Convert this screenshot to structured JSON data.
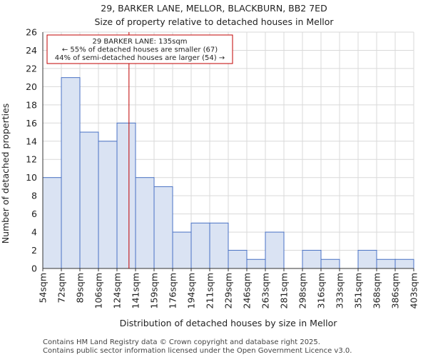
{
  "header": {
    "title_line1": "29, BARKER LANE, MELLOR, BLACKBURN, BB2 7ED",
    "title_line2": "Size of property relative to detached houses in Mellor"
  },
  "footer": {
    "line1": "Contains HM Land Registry data © Crown copyright and database right 2025.",
    "line2": "Contains public sector information licensed under the Open Government Licence v3.0."
  },
  "chart_data": {
    "type": "bar",
    "title": "29, BARKER LANE, MELLOR, BLACKBURN, BB2 7ED",
    "subtitle": "Size of property relative to detached houses in Mellor",
    "xlabel": "Distribution of detached houses by size in Mellor",
    "ylabel": "Number of detached properties",
    "x_tick_labels": [
      "54sqm",
      "72sqm",
      "89sqm",
      "106sqm",
      "124sqm",
      "141sqm",
      "159sqm",
      "176sqm",
      "194sqm",
      "211sqm",
      "229sqm",
      "246sqm",
      "263sqm",
      "281sqm",
      "298sqm",
      "316sqm",
      "333sqm",
      "351sqm",
      "368sqm",
      "386sqm",
      "403sqm"
    ],
    "values": [
      10,
      21,
      15,
      14,
      16,
      10,
      9,
      4,
      5,
      5,
      2,
      1,
      4,
      0,
      2,
      1,
      0,
      2,
      1,
      1
    ],
    "ylim": [
      0,
      26
    ],
    "y_ticks": [
      0,
      2,
      4,
      6,
      8,
      10,
      12,
      14,
      16,
      18,
      20,
      22,
      24,
      26
    ],
    "grid": true,
    "bar_fill": "#dae3f3",
    "bar_stroke": "#4a72c4",
    "marker": {
      "value_sqm": 135,
      "color": "#c00000",
      "annotation_lines": [
        "29 BARKER LANE: 135sqm",
        "← 55% of detached houses are smaller (67)",
        "44% of semi-detached houses are larger (54) →"
      ]
    }
  }
}
